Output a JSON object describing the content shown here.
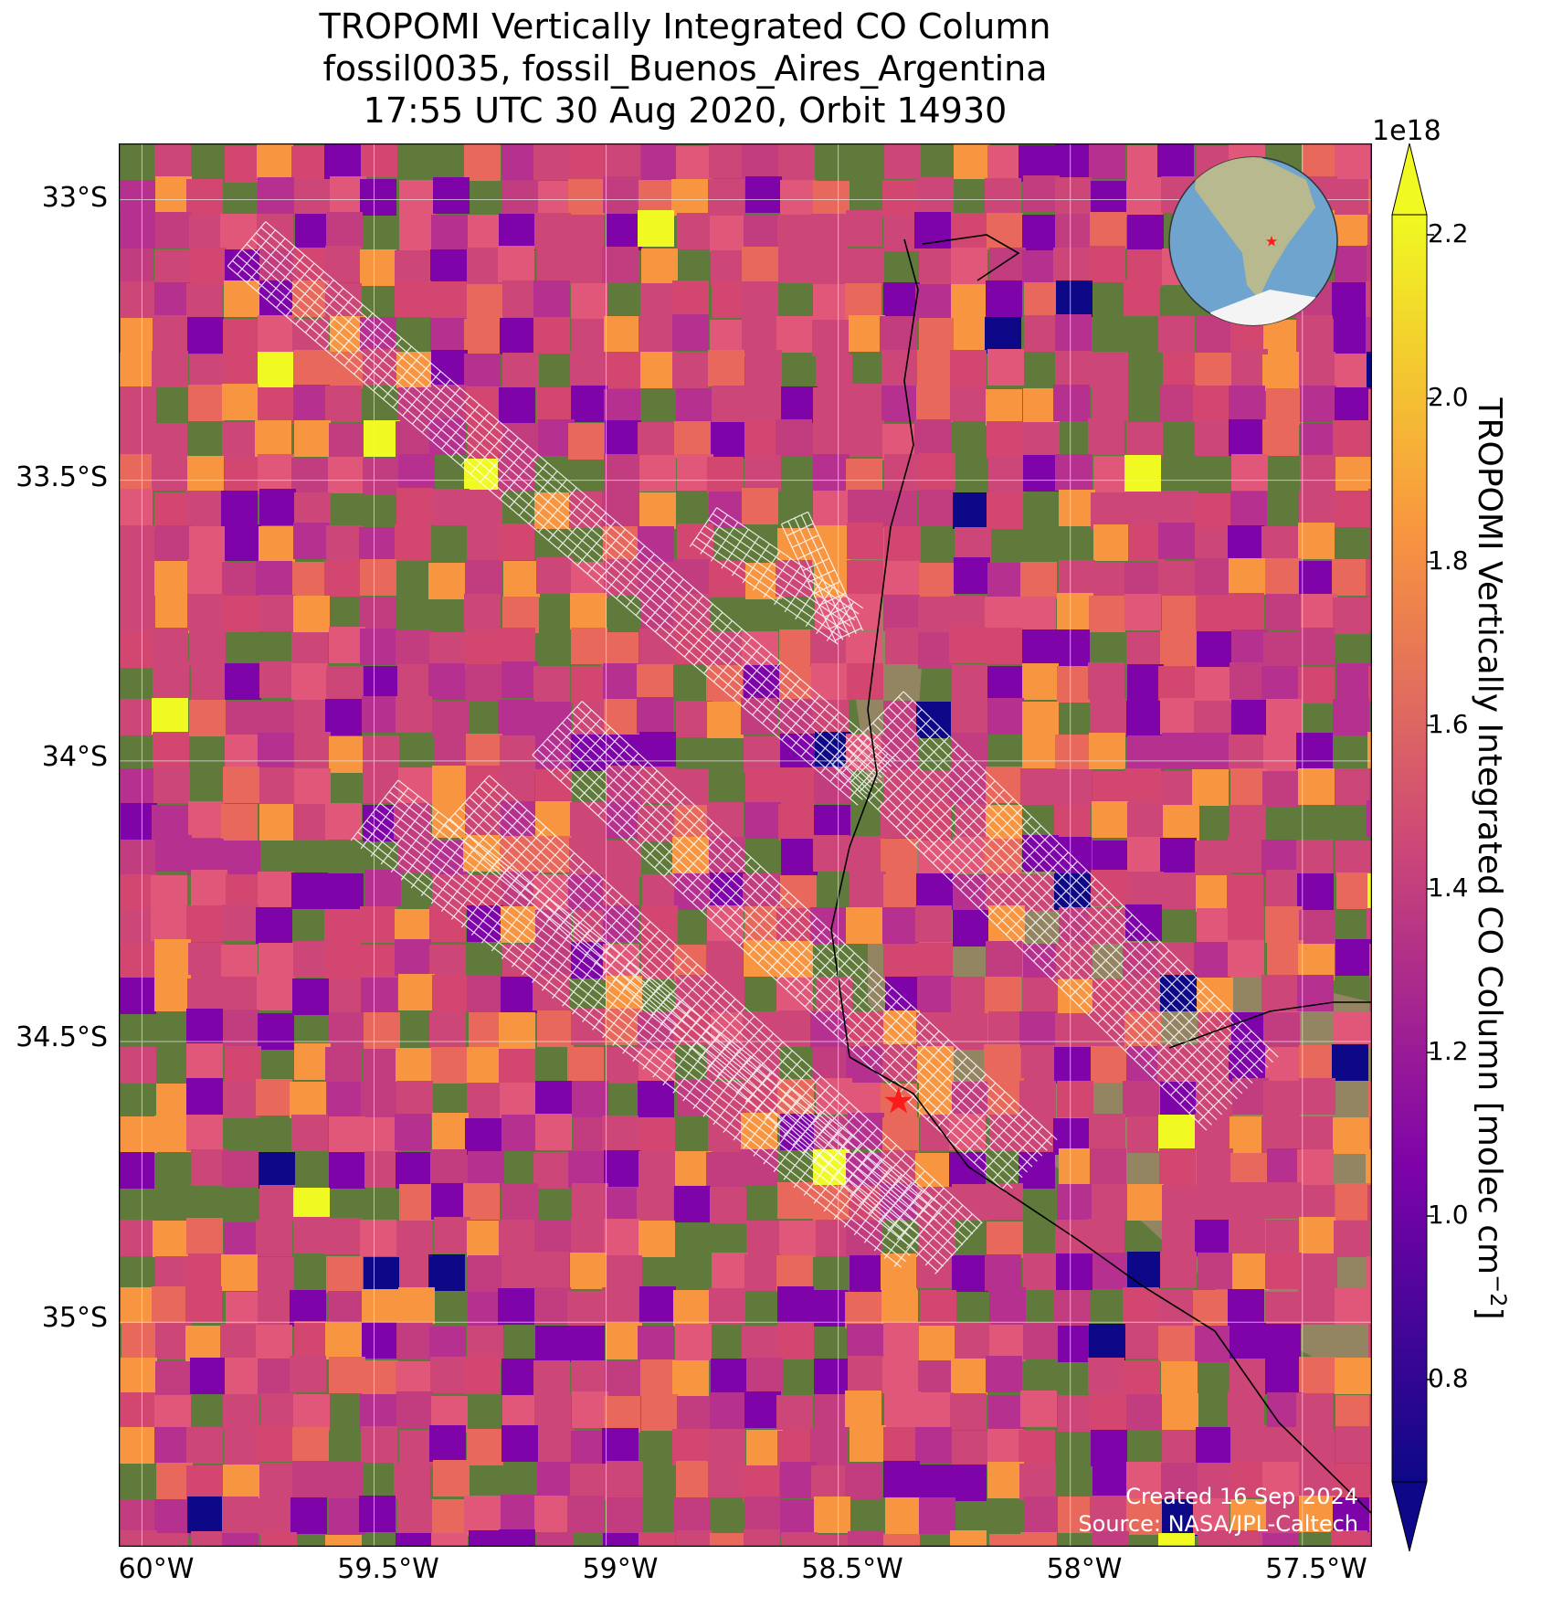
{
  "title": {
    "line1": "TROPOMI Vertically Integrated CO Column",
    "line2": "fossil0035, fossil_Buenos_Aires_Argentina",
    "line3": "17:55 UTC 30 Aug 2020, Orbit 14930"
  },
  "map": {
    "lat_ticks": [
      "33°S",
      "33.5°S",
      "34°S",
      "34.5°S",
      "35°S"
    ],
    "lon_ticks": [
      "60°W",
      "59.5°W",
      "59°W",
      "58.5°W",
      "58°W",
      "57.5°W"
    ],
    "lon_range": [
      -60.05,
      -57.35
    ],
    "lat_range": [
      -35.4,
      -32.9
    ],
    "target": {
      "name": "Buenos Aires",
      "lon": -58.37,
      "lat": -34.61,
      "marker": "red-star"
    }
  },
  "colorbar": {
    "label": "TROPOMI Vertically Integrated CO Column [molec cm",
    "label_sup": "−2",
    "label_end": "]",
    "exponent": "1e18",
    "ticks": [
      "0.8",
      "1.0",
      "1.2",
      "1.4",
      "1.6",
      "1.8",
      "2.0",
      "2.2"
    ],
    "colormap": "plasma",
    "colors": {
      "low": "#0d0887",
      "mid_low": "#7e03a8",
      "mid": "#cc4778",
      "mid_high": "#f89540",
      "high": "#f0f921"
    },
    "extend": "both"
  },
  "credit": {
    "line1": "Created 16 Sep 2024",
    "line2": "Source: NASA/JPL-Caltech"
  },
  "inset": {
    "type": "globe",
    "marker": "red-star"
  }
}
